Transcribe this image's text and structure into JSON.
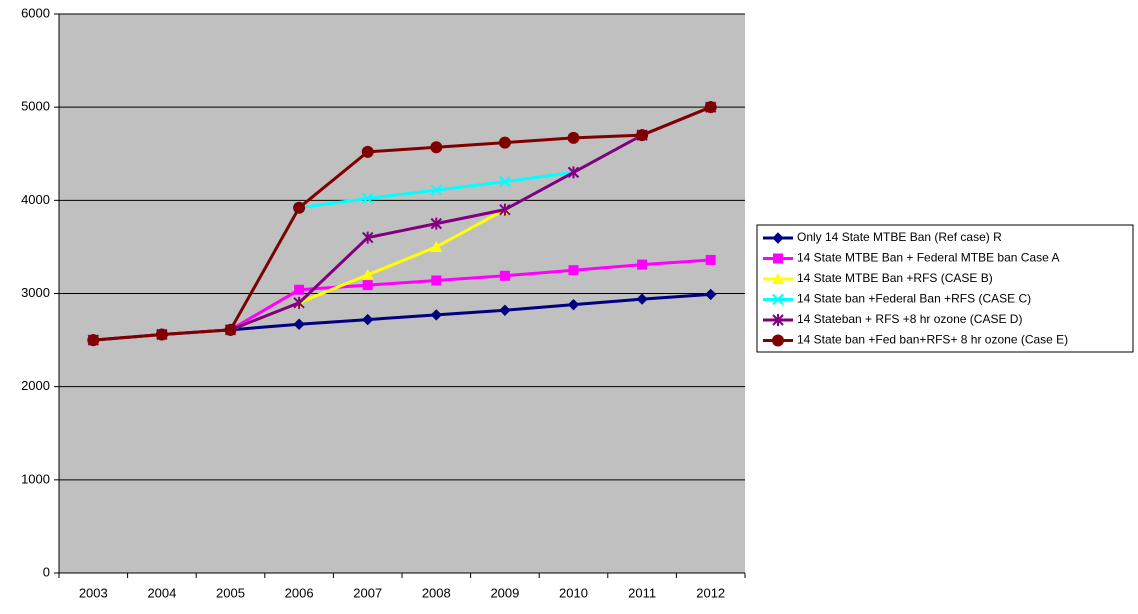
{
  "chart_data": {
    "type": "line",
    "categories": [
      "2003",
      "2004",
      "2005",
      "2006",
      "2007",
      "2008",
      "2009",
      "2010",
      "2011",
      "2012"
    ],
    "series": [
      {
        "name": "Only 14 State MTBE Ban (Ref case) R",
        "color": "#000080",
        "marker": "diamond",
        "values": [
          2500,
          2560,
          2610,
          2670,
          2720,
          2770,
          2820,
          2880,
          2940,
          2990
        ]
      },
      {
        "name": "14 State MTBE Ban + Federal MTBE ban Case A",
        "color": "#ff00ff",
        "marker": "square",
        "values": [
          2500,
          2560,
          2610,
          3040,
          3090,
          3140,
          3190,
          3250,
          3310,
          3360
        ]
      },
      {
        "name": "14 State MTBE Ban +RFS (CASE B)",
        "color": "#ffff00",
        "marker": "triangle",
        "values": [
          2500,
          2560,
          2610,
          2900,
          3200,
          3500,
          3900,
          null,
          null,
          null
        ]
      },
      {
        "name": "14 State ban +Federal Ban +RFS (CASE C)",
        "color": "#00ffff",
        "marker": "x",
        "values": [
          2500,
          2560,
          2610,
          3920,
          4020,
          4110,
          4200,
          4300,
          null,
          null
        ]
      },
      {
        "name": "14 Stateban + RFS +8 hr ozone (CASE D)",
        "color": "#800080",
        "marker": "star",
        "values": [
          2500,
          2560,
          2610,
          2900,
          3600,
          3750,
          3900,
          4300,
          4700,
          5000
        ]
      },
      {
        "name": "14 State ban +Fed ban+RFS+ 8 hr ozone (Case E)",
        "color": "#800000",
        "marker": "circle",
        "values": [
          2500,
          2560,
          2610,
          3920,
          4520,
          4570,
          4620,
          4670,
          4700,
          5000
        ]
      }
    ],
    "ylim": [
      0,
      6000
    ],
    "yticks": [
      0,
      1000,
      2000,
      3000,
      4000,
      5000,
      6000
    ],
    "grid": true,
    "legend": "right",
    "plot_background": "#c0c0c0"
  }
}
